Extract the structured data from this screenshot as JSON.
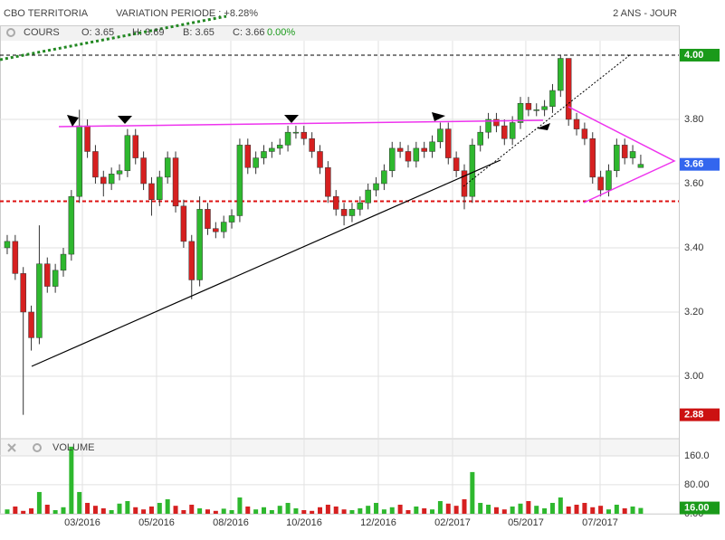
{
  "chart_data": {
    "type": "candlestick",
    "title": "CBO TERRITORIA",
    "subtitle": "VARIATION PERIODE : +8.28%",
    "period": "2 ANS - JOUR",
    "price_label": "COURS",
    "volume_label": "VOLUME",
    "quote": {
      "open": "O: 3.65",
      "high": "H: 3.69",
      "low": "B: 3.65",
      "close": "C: 3.66",
      "change": "0.00%"
    },
    "up_color": "#2eb82e",
    "down_color": "#d62020",
    "grid": true,
    "xlim": [
      -0.9,
      83.75
    ],
    "xticks": [
      {
        "value": 9.37,
        "label": "03/2016"
      },
      {
        "value": 18.62,
        "label": "05/2016"
      },
      {
        "value": 27.88,
        "label": "08/2016"
      },
      {
        "value": 37.02,
        "label": "10/2016"
      },
      {
        "value": 46.28,
        "label": "12/2016"
      },
      {
        "value": 55.53,
        "label": "02/2017"
      },
      {
        "value": 64.67,
        "label": "05/2017"
      },
      {
        "value": 73.93,
        "label": "07/2017"
      }
    ],
    "ylim": [
      2.814,
      4.045
    ],
    "yticks": [
      {
        "value": 3,
        "label": "3.00"
      },
      {
        "value": 3.2,
        "label": "3.20"
      },
      {
        "value": 3.4,
        "label": "3.40"
      },
      {
        "value": 3.6,
        "label": "3.60"
      },
      {
        "value": 3.8,
        "label": "3.80"
      }
    ],
    "reference_lines": [
      {
        "value": 4,
        "color": "#000000"
      },
      {
        "value": 3.545,
        "color": "#dd1111"
      }
    ],
    "price_markers": [
      {
        "value": 4,
        "label": "4.00",
        "color": "#1a9a1a"
      },
      {
        "value": 3.66,
        "label": "3.66",
        "color": "#3366ee"
      },
      {
        "value": 2.88,
        "label": "2.88",
        "color": "#cc1111"
      }
    ],
    "open": [
      3.4,
      3.42,
      3.32,
      3.2,
      3.12,
      3.35,
      3.28,
      3.33,
      3.38,
      3.56,
      3.78,
      3.7,
      3.62,
      3.6,
      3.63,
      3.64,
      3.75,
      3.68,
      3.6,
      3.55,
      3.62,
      3.68,
      3.53,
      3.42,
      3.3,
      3.52,
      3.46,
      3.45,
      3.48,
      3.5,
      3.72,
      3.65,
      3.68,
      3.7,
      3.71,
      3.72,
      3.76,
      3.76,
      3.74,
      3.7,
      3.65,
      3.56,
      3.52,
      3.5,
      3.52,
      3.54,
      3.58,
      3.6,
      3.64,
      3.71,
      3.7,
      3.67,
      3.71,
      3.7,
      3.73,
      3.77,
      3.68,
      3.64,
      3.56,
      3.72,
      3.76,
      3.8,
      3.78,
      3.74,
      3.79,
      3.85,
      3.83,
      3.83,
      3.84,
      3.89,
      3.99,
      3.8,
      3.77,
      3.74,
      3.62,
      3.58,
      3.64,
      3.72,
      3.68,
      3.65
    ],
    "high": [
      3.44,
      3.44,
      3.34,
      3.22,
      3.47,
      3.37,
      3.35,
      3.4,
      3.58,
      3.83,
      3.8,
      3.72,
      3.64,
      3.65,
      3.66,
      3.77,
      3.77,
      3.7,
      3.62,
      3.64,
      3.7,
      3.7,
      3.55,
      3.44,
      3.56,
      3.54,
      3.48,
      3.5,
      3.52,
      3.74,
      3.74,
      3.7,
      3.72,
      3.73,
      3.74,
      3.78,
      3.78,
      3.78,
      3.76,
      3.72,
      3.67,
      3.58,
      3.54,
      3.54,
      3.56,
      3.6,
      3.62,
      3.66,
      3.73,
      3.73,
      3.72,
      3.73,
      3.73,
      3.75,
      3.79,
      3.79,
      3.7,
      3.66,
      3.74,
      3.78,
      3.82,
      3.82,
      3.8,
      3.81,
      3.87,
      3.87,
      3.85,
      3.86,
      3.91,
      4.0,
      3.99,
      3.82,
      3.79,
      3.76,
      3.64,
      3.66,
      3.74,
      3.74,
      3.72,
      3.69
    ],
    "low": [
      3.38,
      3.3,
      2.88,
      3.08,
      3.1,
      3.26,
      3.26,
      3.31,
      3.36,
      3.54,
      3.68,
      3.6,
      3.56,
      3.58,
      3.61,
      3.62,
      3.66,
      3.58,
      3.5,
      3.53,
      3.6,
      3.51,
      3.4,
      3.24,
      3.28,
      3.44,
      3.43,
      3.43,
      3.46,
      3.48,
      3.63,
      3.63,
      3.66,
      3.68,
      3.69,
      3.7,
      3.74,
      3.72,
      3.68,
      3.63,
      3.54,
      3.5,
      3.47,
      3.48,
      3.5,
      3.52,
      3.56,
      3.58,
      3.62,
      3.68,
      3.65,
      3.65,
      3.68,
      3.68,
      3.71,
      3.66,
      3.62,
      3.52,
      3.54,
      3.7,
      3.74,
      3.76,
      3.72,
      3.72,
      3.77,
      3.81,
      3.81,
      3.81,
      3.82,
      3.87,
      3.78,
      3.75,
      3.72,
      3.6,
      3.56,
      3.56,
      3.62,
      3.66,
      3.66,
      3.65
    ],
    "close": [
      3.42,
      3.32,
      3.2,
      3.12,
      3.35,
      3.28,
      3.33,
      3.38,
      3.56,
      3.78,
      3.7,
      3.62,
      3.6,
      3.63,
      3.64,
      3.75,
      3.68,
      3.6,
      3.55,
      3.62,
      3.68,
      3.53,
      3.42,
      3.3,
      3.52,
      3.46,
      3.45,
      3.48,
      3.5,
      3.72,
      3.65,
      3.68,
      3.7,
      3.71,
      3.72,
      3.76,
      3.76,
      3.74,
      3.7,
      3.65,
      3.56,
      3.52,
      3.5,
      3.52,
      3.54,
      3.58,
      3.6,
      3.64,
      3.71,
      3.7,
      3.67,
      3.71,
      3.7,
      3.73,
      3.77,
      3.68,
      3.64,
      3.56,
      3.72,
      3.76,
      3.8,
      3.78,
      3.74,
      3.79,
      3.85,
      3.83,
      3.83,
      3.84,
      3.89,
      3.99,
      3.8,
      3.77,
      3.74,
      3.62,
      3.58,
      3.64,
      3.72,
      3.68,
      3.7,
      3.66
    ],
    "volume": [
      12,
      20,
      8,
      15,
      60,
      25,
      10,
      18,
      185,
      60,
      30,
      22,
      15,
      10,
      28,
      35,
      18,
      12,
      20,
      30,
      40,
      22,
      10,
      25,
      15,
      12,
      8,
      14,
      10,
      45,
      20,
      12,
      18,
      10,
      22,
      30,
      15,
      10,
      8,
      18,
      25,
      20,
      12,
      10,
      15,
      22,
      30,
      12,
      18,
      25,
      10,
      20,
      15,
      12,
      35,
      28,
      22,
      40,
      115,
      30,
      25,
      18,
      12,
      20,
      28,
      35,
      22,
      15,
      30,
      45,
      20,
      25,
      30,
      18,
      22,
      12,
      25,
      15,
      20,
      16
    ],
    "vol_ylim": [
      0,
      207
    ],
    "vol_yticks": [
      {
        "value": 0,
        "label": "0.00"
      },
      {
        "value": 80,
        "label": "80.00"
      },
      {
        "value": 160,
        "label": "160.0"
      }
    ],
    "vol_marker": {
      "value": 16,
      "label": "16.00",
      "color": "#1a9a1a"
    }
  }
}
